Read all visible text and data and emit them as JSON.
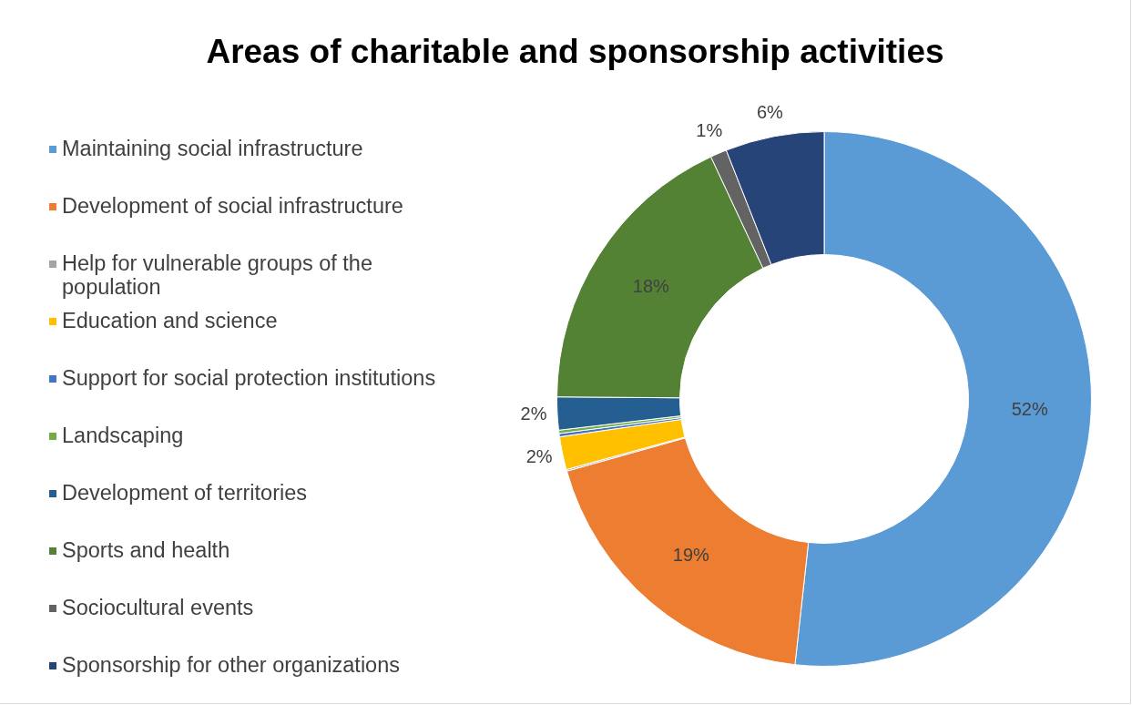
{
  "chart_data": {
    "type": "donut",
    "title": "Areas of charitable and sponsorship activities",
    "categories": [
      "Maintaining social infrastructure",
      "Development of social infrastructure",
      "Help for vulnerable groups of the population",
      "Education and science",
      "Support for social protection institutions",
      "Landscaping",
      "Development of territories",
      "Sports and health",
      "Sociocultural events",
      "Sponsorship for other organizations"
    ],
    "values": [
      52,
      19,
      0.1,
      2,
      0.2,
      0.2,
      2,
      18,
      1,
      6
    ],
    "value_labels": [
      "52%",
      "19%",
      null,
      "2%",
      null,
      null,
      "2%",
      "18%",
      "1%",
      "6%"
    ],
    "colors": [
      "#5b9bd5",
      "#ed7d31",
      "#a5a5a5",
      "#ffc000",
      "#4472c4",
      "#70ad47",
      "#255e91",
      "#548235",
      "#636363",
      "#264478"
    ],
    "legend": "left"
  }
}
